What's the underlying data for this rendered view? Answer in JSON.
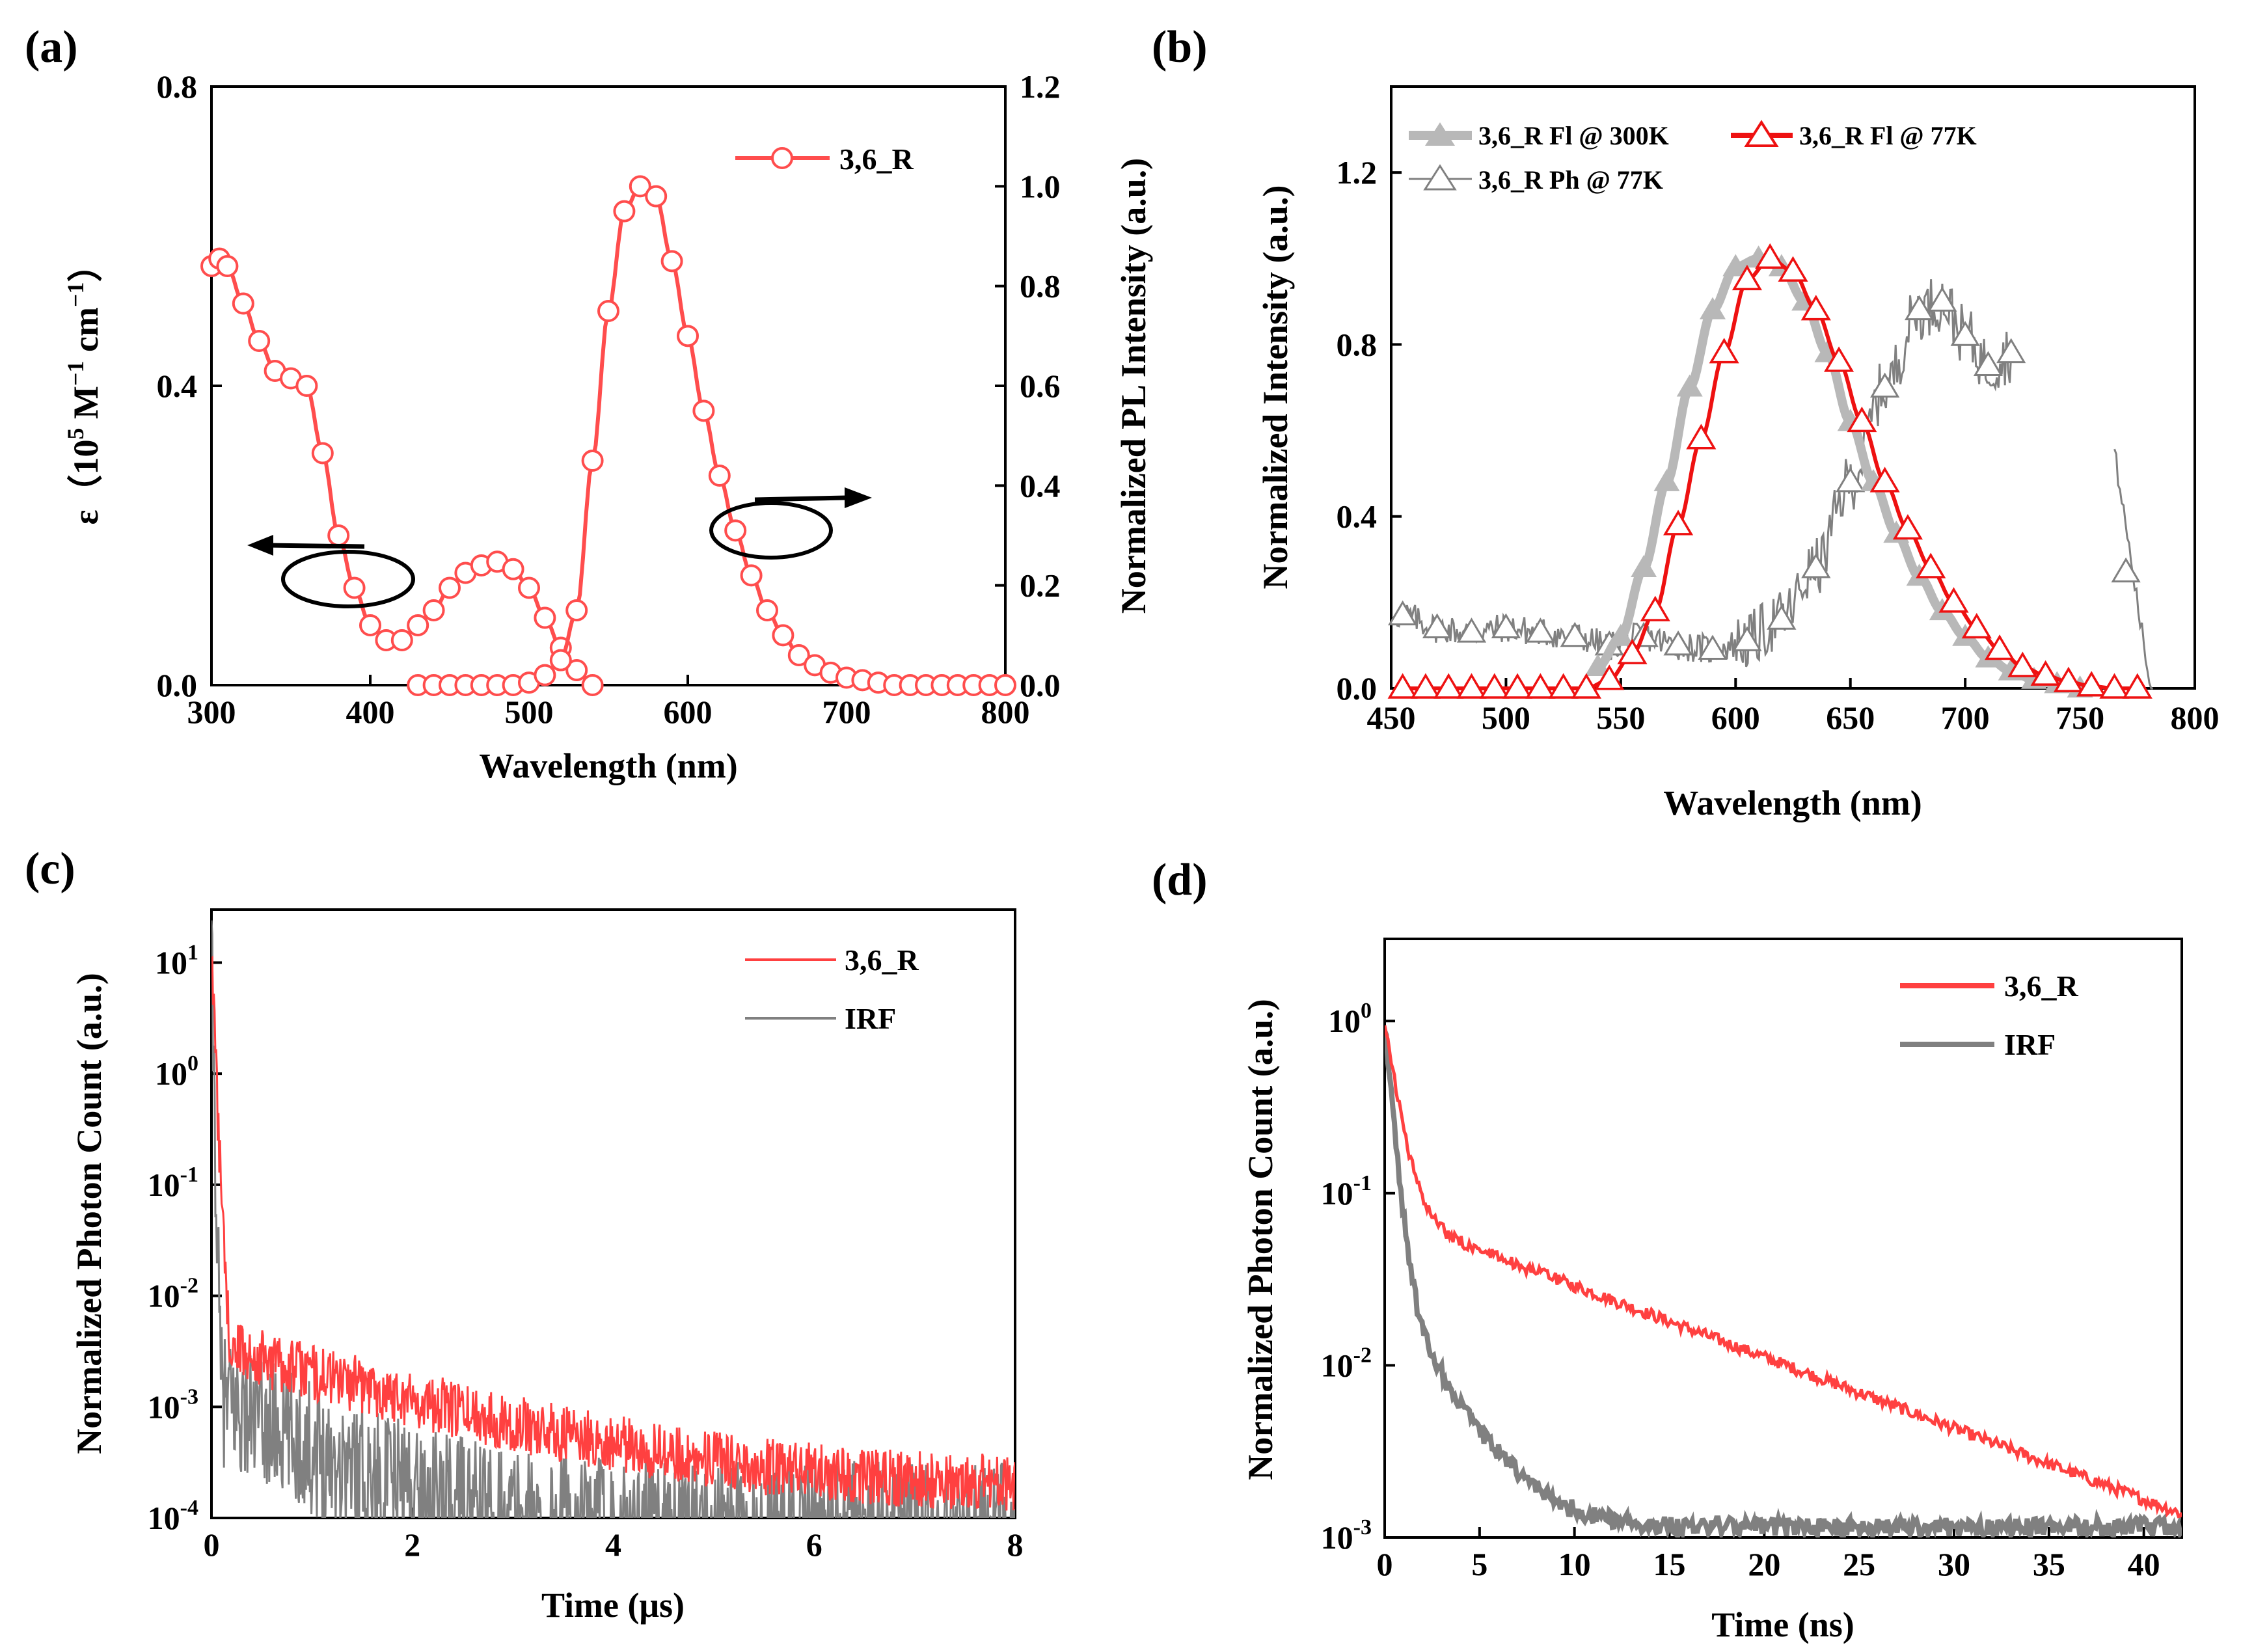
{
  "chart_data": [
    {
      "id": "a",
      "type": "line",
      "panel_label": "(a)",
      "xlabel": "Wavelength (nm)",
      "ylabel_left_parts": [
        "ε（10",
        "5",
        " M",
        "−1",
        " cm",
        "−1",
        "）"
      ],
      "ylabel_right": "Normalized PL Intensity (a.u.)",
      "xlim": [
        300,
        800
      ],
      "ylim_left": [
        0,
        0.8
      ],
      "ylim_right": [
        0,
        1.2
      ],
      "xticks": [
        "300",
        "400",
        "500",
        "600",
        "700",
        "800"
      ],
      "yticks_left": [
        "0.0",
        "0.4",
        "0.8"
      ],
      "yticks_right": [
        "0.0",
        "0.2",
        "0.4",
        "0.6",
        "0.8",
        "1.0",
        "1.2"
      ],
      "legend": [
        "3,6_R"
      ],
      "color": "#ff4d4d",
      "series": [
        {
          "name": "absorption",
          "axis": "left",
          "x": [
            300,
            305,
            310,
            320,
            330,
            340,
            350,
            360,
            370,
            380,
            390,
            400,
            410,
            420,
            430,
            440,
            450,
            460,
            470,
            480,
            490,
            500,
            510,
            520,
            530,
            540
          ],
          "y": [
            0.56,
            0.57,
            0.56,
            0.51,
            0.46,
            0.42,
            0.41,
            0.4,
            0.31,
            0.2,
            0.13,
            0.08,
            0.06,
            0.06,
            0.08,
            0.1,
            0.13,
            0.15,
            0.16,
            0.165,
            0.155,
            0.13,
            0.09,
            0.05,
            0.02,
            0.0
          ]
        },
        {
          "name": "PL",
          "axis": "right",
          "x": [
            430,
            440,
            450,
            460,
            470,
            480,
            490,
            500,
            510,
            520,
            530,
            540,
            550,
            560,
            570,
            580,
            590,
            600,
            610,
            620,
            630,
            640,
            650,
            660,
            670,
            680,
            690,
            700,
            710,
            720,
            730,
            740,
            750,
            760,
            770,
            780,
            790,
            800
          ],
          "y": [
            0,
            0,
            0,
            0,
            0,
            0,
            0,
            0.005,
            0.02,
            0.05,
            0.15,
            0.45,
            0.75,
            0.95,
            1.0,
            0.98,
            0.85,
            0.7,
            0.55,
            0.42,
            0.31,
            0.22,
            0.15,
            0.1,
            0.06,
            0.04,
            0.025,
            0.015,
            0.01,
            0.005,
            0,
            0,
            0,
            0,
            0,
            0,
            0,
            0
          ]
        }
      ]
    },
    {
      "id": "b",
      "type": "line",
      "panel_label": "(b)",
      "xlabel": "Wavelength (nm)",
      "ylabel": "Normalized Intensity (a.u.)",
      "xlim": [
        450,
        800
      ],
      "ylim": [
        0,
        1.4
      ],
      "xticks": [
        "450",
        "500",
        "550",
        "600",
        "650",
        "700",
        "750",
        "800"
      ],
      "yticks": [
        "0.0",
        "0.4",
        "0.8",
        "1.2"
      ],
      "legend": [
        "3,6_R Fl @ 300K",
        "3,6_R Fl @ 77K",
        "3,6_R Ph @ 77K"
      ],
      "series": [
        {
          "name": "3,6_R Fl @ 300K",
          "color": "#b8b8b8",
          "x": [
            540,
            550,
            560,
            570,
            580,
            590,
            600,
            610,
            620,
            630,
            640,
            650,
            660,
            670,
            680,
            690,
            700,
            710,
            720,
            730,
            740,
            750
          ],
          "y": [
            0.05,
            0.12,
            0.28,
            0.48,
            0.7,
            0.88,
            0.98,
            1.0,
            0.98,
            0.9,
            0.78,
            0.62,
            0.48,
            0.36,
            0.26,
            0.18,
            0.12,
            0.07,
            0.04,
            0.02,
            0.01,
            0
          ]
        },
        {
          "name": "3,6_R Fl @ 77K",
          "color": "#ee1111",
          "x": [
            455,
            465,
            475,
            485,
            495,
            505,
            515,
            525,
            535,
            545,
            555,
            565,
            575,
            585,
            595,
            605,
            615,
            625,
            635,
            645,
            655,
            665,
            675,
            685,
            695,
            705,
            715,
            725,
            735,
            745,
            755,
            765,
            775
          ],
          "y": [
            0,
            0,
            0,
            0,
            0,
            0,
            0,
            0,
            0,
            0.02,
            0.08,
            0.18,
            0.38,
            0.58,
            0.78,
            0.95,
            1.0,
            0.97,
            0.88,
            0.76,
            0.62,
            0.48,
            0.37,
            0.28,
            0.2,
            0.14,
            0.09,
            0.05,
            0.03,
            0.015,
            0.005,
            0,
            0
          ]
        },
        {
          "name": "3,6_R Ph @ 77K",
          "color": "#808080",
          "x": [
            455,
            470,
            485,
            500,
            515,
            530,
            545,
            560,
            575,
            590,
            605,
            620,
            635,
            650,
            665,
            680,
            690,
            700,
            710,
            720
          ],
          "y": [
            0.17,
            0.14,
            0.13,
            0.14,
            0.13,
            0.12,
            0.1,
            0.12,
            0.1,
            0.09,
            0.11,
            0.16,
            0.28,
            0.48,
            0.7,
            0.88,
            0.9,
            0.82,
            0.75,
            0.78
          ]
        }
      ]
    },
    {
      "id": "c",
      "type": "line",
      "panel_label": "(c)",
      "xlabel": "Time (μs)",
      "ylabel": "Normalized Photon Count (a.u.)",
      "xscale": "linear",
      "yscale": "log",
      "xlim": [
        0,
        8
      ],
      "ylim": [
        0.0001,
        30
      ],
      "xticks": [
        "0",
        "2",
        "4",
        "6",
        "8"
      ],
      "yticks_mantissa": "10",
      "yticks_exponents": [
        "1",
        "0",
        "-1",
        "-2",
        "-3",
        "-4"
      ],
      "legend": [
        "3,6_R",
        "IRF"
      ],
      "series": [
        {
          "name": "3,6_R",
          "color": "#ff4040",
          "decay": {
            "a1": 10,
            "t1": 0.02,
            "a2": 0.0035,
            "t2": 1.6,
            "floor": 0.00018,
            "noise": 0.6
          }
        },
        {
          "name": "IRF",
          "color": "#808080",
          "decay": {
            "a1": 10,
            "t1": 0.01,
            "a2": 0.0012,
            "t2": 0.8,
            "floor": 8e-05,
            "noise": 1.4
          }
        }
      ]
    },
    {
      "id": "d",
      "type": "line",
      "panel_label": "(d)",
      "xlabel": "Time (ns)",
      "ylabel": "Normalized Photon Count (a.u.)",
      "xscale": "linear",
      "yscale": "log",
      "xlim": [
        0,
        42
      ],
      "ylim": [
        0.001,
        3
      ],
      "xticks": [
        "0",
        "5",
        "10",
        "15",
        "20",
        "25",
        "30",
        "35",
        "40"
      ],
      "yticks_mantissa": "10",
      "yticks_exponents": [
        "0",
        "-1",
        "-2",
        "-3"
      ],
      "legend": [
        "3,6_R",
        "IRF"
      ],
      "series": [
        {
          "name": "3,6_R",
          "color": "#ff4040",
          "decay": {
            "a1": 0.9,
            "t1": 0.6,
            "a2": 0.075,
            "t2": 10.5,
            "floor": 0.0,
            "noise": 0.08
          }
        },
        {
          "name": "IRF",
          "color": "#808080",
          "decay": {
            "a1": 0.95,
            "t1": 0.35,
            "a2": 0.03,
            "t2": 2.2,
            "floor": 0.00115,
            "noise": 0.12
          }
        }
      ]
    }
  ]
}
